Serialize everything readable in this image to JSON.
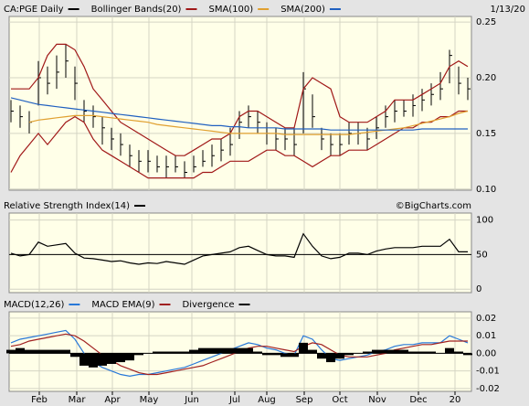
{
  "chart_data": [
    {
      "type": "ohlc",
      "title": "CA:PGE Daily",
      "date": "1/13/20",
      "x": [
        0,
        1,
        2,
        3,
        4,
        5,
        6,
        7,
        8,
        9,
        10,
        11,
        12,
        13,
        14,
        15,
        16,
        17,
        18,
        19,
        20,
        21,
        22,
        23,
        24,
        25,
        26,
        27,
        28,
        29,
        30,
        31,
        32,
        33,
        34,
        35,
        36,
        37,
        38,
        39,
        40,
        41,
        42,
        43,
        44,
        45,
        46,
        47,
        48,
        49,
        50
      ],
      "xlim": [
        -0.2,
        50.4
      ],
      "ylim": [
        0.099,
        0.255
      ],
      "yticks": [
        {
          "value": 0.1,
          "label": "0.10"
        },
        0.15,
        {
          "value": 0.2,
          "label": "0.20"
        },
        0.25
      ],
      "grid": true,
      "series": [
        {
          "name": "CA:PGE Daily",
          "type": "ohlc",
          "color": "#000000",
          "high": [
            0.18,
            0.175,
            0.17,
            0.215,
            0.21,
            0.22,
            0.23,
            0.21,
            0.18,
            0.175,
            0.165,
            0.155,
            0.15,
            0.14,
            0.135,
            0.135,
            0.13,
            0.13,
            0.13,
            0.125,
            0.13,
            0.135,
            0.14,
            0.145,
            0.155,
            0.17,
            0.175,
            0.17,
            0.16,
            0.155,
            0.155,
            0.155,
            0.205,
            0.185,
            0.155,
            0.15,
            0.15,
            0.16,
            0.16,
            0.155,
            0.165,
            0.175,
            0.18,
            0.18,
            0.185,
            0.19,
            0.195,
            0.205,
            0.225,
            0.21,
            0.2
          ],
          "low": [
            0.16,
            0.155,
            0.15,
            0.175,
            0.185,
            0.19,
            0.2,
            0.18,
            0.16,
            0.155,
            0.14,
            0.135,
            0.13,
            0.12,
            0.115,
            0.115,
            0.115,
            0.11,
            0.115,
            0.11,
            0.115,
            0.12,
            0.12,
            0.125,
            0.13,
            0.145,
            0.155,
            0.15,
            0.14,
            0.135,
            0.135,
            0.13,
            0.15,
            0.155,
            0.135,
            0.13,
            0.13,
            0.14,
            0.14,
            0.135,
            0.145,
            0.155,
            0.16,
            0.165,
            0.165,
            0.17,
            0.175,
            0.18,
            0.195,
            0.185,
            0.18
          ],
          "values": [
            0.17,
            0.165,
            0.16,
            0.2,
            0.195,
            0.205,
            0.215,
            0.195,
            0.17,
            0.165,
            0.155,
            0.145,
            0.14,
            0.13,
            0.125,
            0.125,
            0.12,
            0.12,
            0.12,
            0.115,
            0.12,
            0.125,
            0.13,
            0.135,
            0.14,
            0.16,
            0.165,
            0.16,
            0.15,
            0.145,
            0.145,
            0.14,
            0.19,
            0.165,
            0.145,
            0.14,
            0.14,
            0.15,
            0.15,
            0.145,
            0.155,
            0.165,
            0.17,
            0.17,
            0.175,
            0.18,
            0.185,
            0.19,
            0.22,
            0.195,
            0.19
          ]
        },
        {
          "name": "Bollinger Bands(20)",
          "type": "band",
          "color": "#a01818",
          "values": [
            0.19,
            0.19,
            0.19,
            0.2,
            0.22,
            0.23,
            0.23,
            0.225,
            0.21,
            0.19,
            0.18,
            0.17,
            0.16,
            0.155,
            0.15,
            0.145,
            0.14,
            0.135,
            0.13,
            0.13,
            0.135,
            0.14,
            0.145,
            0.145,
            0.15,
            0.165,
            0.17,
            0.17,
            0.165,
            0.16,
            0.155,
            0.155,
            0.19,
            0.2,
            0.195,
            0.19,
            0.165,
            0.16,
            0.16,
            0.16,
            0.165,
            0.17,
            0.18,
            0.18,
            0.18,
            0.185,
            0.19,
            0.195,
            0.21,
            0.215,
            0.21
          ],
          "lower": [
            0.115,
            0.13,
            0.14,
            0.15,
            0.14,
            0.15,
            0.16,
            0.165,
            0.16,
            0.145,
            0.135,
            0.13,
            0.125,
            0.12,
            0.115,
            0.11,
            0.11,
            0.11,
            0.11,
            0.11,
            0.11,
            0.115,
            0.115,
            0.12,
            0.125,
            0.125,
            0.125,
            0.13,
            0.135,
            0.135,
            0.13,
            0.13,
            0.125,
            0.12,
            0.125,
            0.13,
            0.13,
            0.135,
            0.135,
            0.135,
            0.14,
            0.145,
            0.15,
            0.155,
            0.155,
            0.16,
            0.16,
            0.165,
            0.165,
            0.17,
            0.17
          ]
        },
        {
          "name": "SMA(100)",
          "type": "line",
          "color": "#e0a030",
          "values": [
            null,
            null,
            0.16,
            0.162,
            0.163,
            0.164,
            0.165,
            0.166,
            0.166,
            0.166,
            0.165,
            0.164,
            0.163,
            0.162,
            0.161,
            0.16,
            0.158,
            0.157,
            0.156,
            0.155,
            0.154,
            0.153,
            0.152,
            0.151,
            0.15,
            0.15,
            0.15,
            0.15,
            0.15,
            0.15,
            0.149,
            0.149,
            0.149,
            0.149,
            0.149,
            0.149,
            0.149,
            0.149,
            0.15,
            0.151,
            0.152,
            0.153,
            0.154,
            0.155,
            0.157,
            0.159,
            0.161,
            0.163,
            0.165,
            0.168,
            0.17
          ]
        },
        {
          "name": "SMA(200)",
          "type": "line",
          "color": "#2060c0",
          "values": [
            0.182,
            0.18,
            0.178,
            0.176,
            0.175,
            0.174,
            0.173,
            0.172,
            0.171,
            0.17,
            0.169,
            0.168,
            0.167,
            0.166,
            0.165,
            0.164,
            0.163,
            0.162,
            0.161,
            0.16,
            0.159,
            0.158,
            0.157,
            0.157,
            0.156,
            0.156,
            0.155,
            0.155,
            0.155,
            0.155,
            0.154,
            0.154,
            0.154,
            0.154,
            0.154,
            0.153,
            0.153,
            0.153,
            0.153,
            0.153,
            0.153,
            0.153,
            0.153,
            0.153,
            0.153,
            0.154,
            0.154,
            0.154,
            0.154,
            0.154,
            0.154
          ]
        }
      ]
    },
    {
      "type": "line",
      "credit": "©BigCharts.com",
      "xlim": [
        -0.2,
        50.4
      ],
      "ylim": [
        -5,
        110
      ],
      "yticks": [
        0,
        50,
        100
      ],
      "grid": true,
      "baseline": 50,
      "series": [
        {
          "name": "Relative Strength Index(14)",
          "type": "line",
          "color": "#000000",
          "values": [
            52,
            48,
            50,
            68,
            62,
            64,
            66,
            52,
            45,
            44,
            42,
            40,
            41,
            38,
            36,
            38,
            37,
            40,
            38,
            36,
            42,
            48,
            50,
            52,
            54,
            60,
            62,
            56,
            50,
            48,
            48,
            46,
            80,
            62,
            48,
            44,
            46,
            52,
            52,
            50,
            55,
            58,
            60,
            60,
            60,
            62,
            62,
            62,
            72,
            54,
            54
          ]
        }
      ]
    },
    {
      "type": "line",
      "xlim": [
        -0.2,
        50.4
      ],
      "ylim": [
        -0.0216,
        0.0236
      ],
      "yticks": [
        -0.02,
        -0.01,
        {
          "value": 0,
          "label": "0.00"
        },
        0.01,
        0.02
      ],
      "grid": true,
      "baseline": 0,
      "xticks": [
        {
          "value": 3.1,
          "label": "Feb"
        },
        {
          "value": 7.2,
          "label": "Mar"
        },
        {
          "value": 11.1,
          "label": "Apr"
        },
        {
          "value": 15.1,
          "label": "May"
        },
        {
          "value": 19.8,
          "label": "Jun"
        },
        {
          "value": 24.5,
          "label": "Jul"
        },
        {
          "value": 28,
          "label": "Aug"
        },
        {
          "value": 32.1,
          "label": "Sep"
        },
        {
          "value": 36,
          "label": "Oct"
        },
        {
          "value": 40.1,
          "label": "Nov"
        },
        {
          "value": 44.6,
          "label": "Dec"
        },
        {
          "value": 48.6,
          "label": "20"
        }
      ],
      "series": [
        {
          "name": "MACD(12,26)",
          "type": "line",
          "color": "#2878d8",
          "values": [
            0.006,
            0.008,
            0.009,
            0.01,
            0.011,
            0.012,
            0.013,
            0.008,
            0.0,
            -0.005,
            -0.008,
            -0.01,
            -0.012,
            -0.013,
            -0.012,
            -0.012,
            -0.011,
            -0.01,
            -0.009,
            -0.008,
            -0.006,
            -0.004,
            -0.002,
            0.0,
            0.002,
            0.004,
            0.006,
            0.005,
            0.003,
            0.002,
            0.0,
            -0.001,
            0.01,
            0.008,
            0.002,
            -0.003,
            -0.004,
            -0.003,
            -0.002,
            -0.001,
            0.001,
            0.002,
            0.004,
            0.005,
            0.005,
            0.006,
            0.006,
            0.006,
            0.01,
            0.008,
            0.006
          ]
        },
        {
          "name": "MACD EMA(9)",
          "type": "line",
          "color": "#a02020",
          "values": [
            0.004,
            0.005,
            0.007,
            0.008,
            0.009,
            0.01,
            0.011,
            0.01,
            0.007,
            0.003,
            -0.001,
            -0.004,
            -0.007,
            -0.009,
            -0.011,
            -0.012,
            -0.012,
            -0.011,
            -0.01,
            -0.009,
            -0.008,
            -0.007,
            -0.005,
            -0.003,
            -0.001,
            0.001,
            0.003,
            0.004,
            0.004,
            0.003,
            0.002,
            0.001,
            0.004,
            0.006,
            0.005,
            0.002,
            -0.001,
            -0.002,
            -0.002,
            -0.002,
            -0.001,
            0.0,
            0.002,
            0.003,
            0.004,
            0.005,
            0.005,
            0.006,
            0.007,
            0.007,
            0.007
          ]
        },
        {
          "name": "Divergence",
          "type": "histogram",
          "color": "#000000",
          "values": [
            0.002,
            0.003,
            0.002,
            0.002,
            0.002,
            0.002,
            0.002,
            -0.002,
            -0.007,
            -0.008,
            -0.007,
            -0.006,
            -0.005,
            -0.004,
            -0.001,
            0,
            0.001,
            0.001,
            0.001,
            0.001,
            0.002,
            0.003,
            0.003,
            0.003,
            0.003,
            0.003,
            0.003,
            0.001,
            -0.001,
            -0.001,
            -0.002,
            -0.002,
            0.006,
            0.002,
            -0.003,
            -0.005,
            -0.003,
            -0.001,
            0,
            0.001,
            0.002,
            0.002,
            0.002,
            0.002,
            0.001,
            0.001,
            0.001,
            0,
            0.003,
            0.001,
            -0.001
          ]
        }
      ]
    }
  ]
}
